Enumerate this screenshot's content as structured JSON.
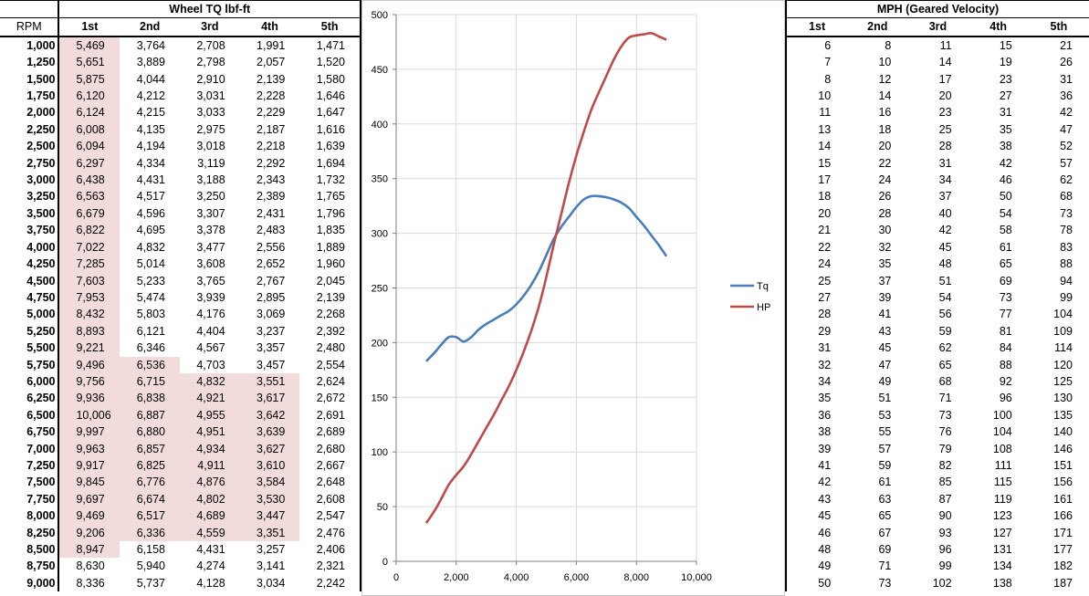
{
  "left_table": {
    "title": "Wheel TQ lbf-ft",
    "rpm_header": "RPM",
    "gear_headers": [
      "1st",
      "2nd",
      "3rd",
      "4th",
      "5th"
    ],
    "rows": [
      {
        "rpm": "1,000",
        "v": [
          "5,469",
          "3,764",
          "2,708",
          "1,991",
          "1,471"
        ]
      },
      {
        "rpm": "1,250",
        "v": [
          "5,651",
          "3,889",
          "2,798",
          "2,057",
          "1,520"
        ]
      },
      {
        "rpm": "1,500",
        "v": [
          "5,875",
          "4,044",
          "2,910",
          "2,139",
          "1,580"
        ]
      },
      {
        "rpm": "1,750",
        "v": [
          "6,120",
          "4,212",
          "3,031",
          "2,228",
          "1,646"
        ]
      },
      {
        "rpm": "2,000",
        "v": [
          "6,124",
          "4,215",
          "3,033",
          "2,229",
          "1,647"
        ]
      },
      {
        "rpm": "2,250",
        "v": [
          "6,008",
          "4,135",
          "2,975",
          "2,187",
          "1,616"
        ]
      },
      {
        "rpm": "2,500",
        "v": [
          "6,094",
          "4,194",
          "3,018",
          "2,218",
          "1,639"
        ]
      },
      {
        "rpm": "2,750",
        "v": [
          "6,297",
          "4,334",
          "3,119",
          "2,292",
          "1,694"
        ]
      },
      {
        "rpm": "3,000",
        "v": [
          "6,438",
          "4,431",
          "3,188",
          "2,343",
          "1,732"
        ]
      },
      {
        "rpm": "3,250",
        "v": [
          "6,563",
          "4,517",
          "3,250",
          "2,389",
          "1,765"
        ]
      },
      {
        "rpm": "3,500",
        "v": [
          "6,679",
          "4,596",
          "3,307",
          "2,431",
          "1,796"
        ]
      },
      {
        "rpm": "3,750",
        "v": [
          "6,822",
          "4,695",
          "3,378",
          "2,483",
          "1,835"
        ]
      },
      {
        "rpm": "4,000",
        "v": [
          "7,022",
          "4,832",
          "3,477",
          "2,556",
          "1,889"
        ]
      },
      {
        "rpm": "4,250",
        "v": [
          "7,285",
          "5,014",
          "3,608",
          "2,652",
          "1,960"
        ]
      },
      {
        "rpm": "4,500",
        "v": [
          "7,603",
          "5,233",
          "3,765",
          "2,767",
          "2,045"
        ]
      },
      {
        "rpm": "4,750",
        "v": [
          "7,953",
          "5,474",
          "3,939",
          "2,895",
          "2,139"
        ]
      },
      {
        "rpm": "5,000",
        "v": [
          "8,432",
          "5,803",
          "4,176",
          "3,069",
          "2,268"
        ]
      },
      {
        "rpm": "5,250",
        "v": [
          "8,893",
          "6,121",
          "4,404",
          "3,237",
          "2,392"
        ]
      },
      {
        "rpm": "5,500",
        "v": [
          "9,221",
          "6,346",
          "4,567",
          "3,357",
          "2,480"
        ]
      },
      {
        "rpm": "5,750",
        "v": [
          "9,496",
          "6,536",
          "4,703",
          "3,457",
          "2,554"
        ]
      },
      {
        "rpm": "6,000",
        "v": [
          "9,756",
          "6,715",
          "4,832",
          "3,551",
          "2,624"
        ]
      },
      {
        "rpm": "6,250",
        "v": [
          "9,936",
          "6,838",
          "4,921",
          "3,617",
          "2,672"
        ]
      },
      {
        "rpm": "6,500",
        "v": [
          "10,006",
          "6,887",
          "4,955",
          "3,642",
          "2,691"
        ]
      },
      {
        "rpm": "6,750",
        "v": [
          "9,997",
          "6,880",
          "4,951",
          "3,639",
          "2,689"
        ]
      },
      {
        "rpm": "7,000",
        "v": [
          "9,963",
          "6,857",
          "4,934",
          "3,627",
          "2,680"
        ]
      },
      {
        "rpm": "7,250",
        "v": [
          "9,917",
          "6,825",
          "4,911",
          "3,610",
          "2,667"
        ]
      },
      {
        "rpm": "7,500",
        "v": [
          "9,845",
          "6,776",
          "4,876",
          "3,584",
          "2,648"
        ]
      },
      {
        "rpm": "7,750",
        "v": [
          "9,697",
          "6,674",
          "4,802",
          "3,530",
          "2,608"
        ]
      },
      {
        "rpm": "8,000",
        "v": [
          "9,469",
          "6,517",
          "4,689",
          "3,447",
          "2,547"
        ]
      },
      {
        "rpm": "8,250",
        "v": [
          "9,206",
          "6,336",
          "4,559",
          "3,351",
          "2,476"
        ]
      },
      {
        "rpm": "8,500",
        "v": [
          "8,947",
          "6,158",
          "4,431",
          "3,257",
          "2,406"
        ]
      },
      {
        "rpm": "8,750",
        "v": [
          "8,630",
          "5,940",
          "4,274",
          "3,141",
          "2,321"
        ]
      },
      {
        "rpm": "9,000",
        "v": [
          "8,336",
          "5,737",
          "4,128",
          "3,034",
          "2,242"
        ]
      }
    ],
    "highlight_color": "#f2dcdb",
    "highlight_ranges": {
      "0": [
        0,
        30
      ],
      "1": [
        19,
        29
      ],
      "2": [
        20,
        29
      ],
      "3": [
        20,
        29
      ]
    }
  },
  "right_table": {
    "title": "MPH (Geared Velocity)",
    "gear_headers": [
      "1st",
      "2nd",
      "3rd",
      "4th",
      "5th"
    ],
    "rows": [
      [
        "6",
        "8",
        "11",
        "15",
        "21"
      ],
      [
        "7",
        "10",
        "14",
        "19",
        "26"
      ],
      [
        "8",
        "12",
        "17",
        "23",
        "31"
      ],
      [
        "10",
        "14",
        "20",
        "27",
        "36"
      ],
      [
        "11",
        "16",
        "23",
        "31",
        "42"
      ],
      [
        "13",
        "18",
        "25",
        "35",
        "47"
      ],
      [
        "14",
        "20",
        "28",
        "38",
        "52"
      ],
      [
        "15",
        "22",
        "31",
        "42",
        "57"
      ],
      [
        "17",
        "24",
        "34",
        "46",
        "62"
      ],
      [
        "18",
        "26",
        "37",
        "50",
        "68"
      ],
      [
        "20",
        "28",
        "40",
        "54",
        "73"
      ],
      [
        "21",
        "30",
        "42",
        "58",
        "78"
      ],
      [
        "22",
        "32",
        "45",
        "61",
        "83"
      ],
      [
        "24",
        "35",
        "48",
        "65",
        "88"
      ],
      [
        "25",
        "37",
        "51",
        "69",
        "94"
      ],
      [
        "27",
        "39",
        "54",
        "73",
        "99"
      ],
      [
        "28",
        "41",
        "56",
        "77",
        "104"
      ],
      [
        "29",
        "43",
        "59",
        "81",
        "109"
      ],
      [
        "31",
        "45",
        "62",
        "84",
        "114"
      ],
      [
        "32",
        "47",
        "65",
        "88",
        "120"
      ],
      [
        "34",
        "49",
        "68",
        "92",
        "125"
      ],
      [
        "35",
        "51",
        "71",
        "96",
        "130"
      ],
      [
        "36",
        "53",
        "73",
        "100",
        "135"
      ],
      [
        "38",
        "55",
        "76",
        "104",
        "140"
      ],
      [
        "39",
        "57",
        "79",
        "108",
        "146"
      ],
      [
        "41",
        "59",
        "82",
        "111",
        "151"
      ],
      [
        "42",
        "61",
        "85",
        "115",
        "156"
      ],
      [
        "43",
        "63",
        "87",
        "119",
        "161"
      ],
      [
        "45",
        "65",
        "90",
        "123",
        "166"
      ],
      [
        "46",
        "67",
        "93",
        "127",
        "171"
      ],
      [
        "48",
        "69",
        "96",
        "131",
        "177"
      ],
      [
        "49",
        "71",
        "99",
        "134",
        "182"
      ],
      [
        "50",
        "73",
        "102",
        "138",
        "187"
      ]
    ]
  },
  "chart_data": {
    "type": "line",
    "xlim": [
      0,
      10000
    ],
    "ylim": [
      0,
      500
    ],
    "x_ticks": [
      "0",
      "2,000",
      "4,000",
      "6,000",
      "8,000",
      "10,000"
    ],
    "y_ticks": [
      "0",
      "50",
      "100",
      "150",
      "200",
      "250",
      "300",
      "350",
      "400",
      "450",
      "500"
    ],
    "grid": true,
    "legend_position": "right",
    "series": [
      {
        "name": "Tq",
        "color": "#4a7ebb",
        "x": [
          1000,
          1250,
          1500,
          1750,
          2000,
          2250,
          2500,
          2750,
          3000,
          3250,
          3500,
          3750,
          4000,
          4250,
          4500,
          4750,
          5000,
          5250,
          5500,
          5750,
          6000,
          6250,
          6500,
          6750,
          7000,
          7250,
          7500,
          7750,
          8000,
          8250,
          8500,
          8750,
          9000
        ],
        "y": [
          183,
          190,
          198,
          205,
          205,
          201,
          205,
          212,
          217,
          221,
          225,
          229,
          235,
          243,
          253,
          265,
          280,
          295,
          306,
          315,
          324,
          331,
          334,
          334,
          333,
          331,
          328,
          323,
          315,
          307,
          298,
          289,
          279
        ]
      },
      {
        "name": "HP",
        "color": "#be4b48",
        "x": [
          1000,
          1250,
          1500,
          1750,
          2000,
          2250,
          2500,
          2750,
          3000,
          3250,
          3500,
          3750,
          4000,
          4250,
          4500,
          4750,
          5000,
          5250,
          5500,
          5750,
          6000,
          6250,
          6500,
          6750,
          7000,
          7250,
          7500,
          7750,
          8000,
          8250,
          8500,
          8750,
          9000
        ],
        "y": [
          35,
          45,
          57,
          70,
          79,
          87,
          98,
          110,
          122,
          134,
          147,
          160,
          175,
          192,
          211,
          233,
          260,
          290,
          318,
          346,
          371,
          393,
          413,
          429,
          444,
          459,
          471,
          479,
          481,
          482,
          483,
          480,
          477
        ]
      }
    ]
  }
}
